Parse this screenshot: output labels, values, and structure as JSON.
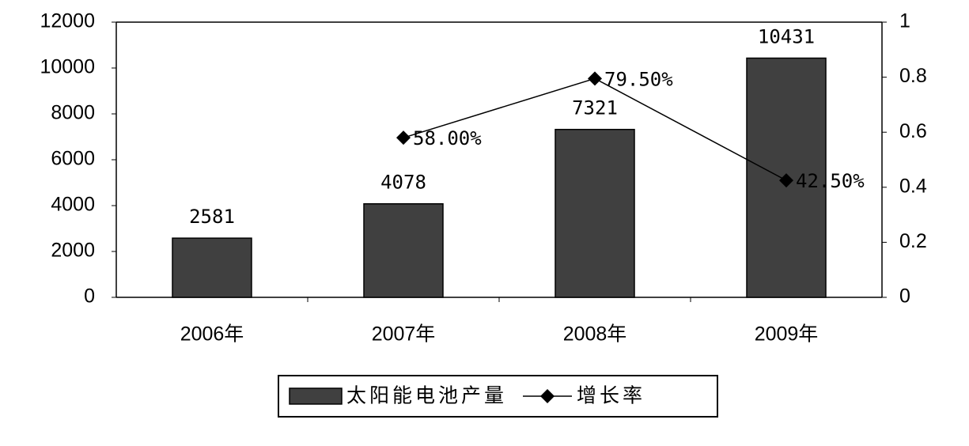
{
  "chart_data": {
    "type": "bar",
    "categories": [
      "2006年",
      "2007年",
      "2008年",
      "2009年"
    ],
    "series": [
      {
        "name": "太阳能电池产量",
        "color": "#404040",
        "values": [
          2581,
          4078,
          7321,
          10431
        ]
      },
      {
        "name": "增长率",
        "color": "#000000",
        "axis": "y2",
        "values": [
          null,
          0.58,
          0.795,
          0.425
        ],
        "value_labels": [
          null,
          "58.00%",
          "79.50%",
          "42.50%"
        ]
      }
    ],
    "ylim": [
      0,
      12000
    ],
    "yticks": [
      0,
      2000,
      4000,
      6000,
      8000,
      10000,
      12000
    ],
    "y2lim": [
      0,
      1
    ],
    "y2ticks": [
      0,
      0.2,
      0.4,
      0.6,
      0.8,
      1
    ],
    "legend": "bottom"
  }
}
